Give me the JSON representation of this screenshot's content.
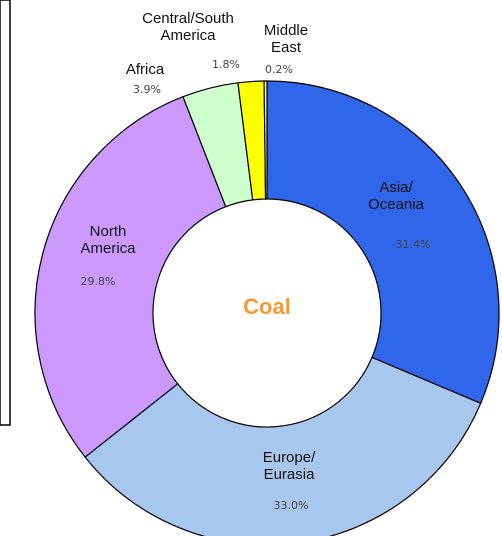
{
  "chart_data": {
    "type": "pie",
    "center_label": "Coal",
    "center_color": "#f59a2f",
    "slices": [
      {
        "label_lines": [
          "Asia/",
          "Oceania"
        ],
        "value": 31.4,
        "value_label": "31.4%",
        "color": "#2f66ea"
      },
      {
        "label_lines": [
          "Europe/",
          "Eurasia"
        ],
        "value": 33.0,
        "value_label": "33.0%",
        "color": "#a7c7ee"
      },
      {
        "label_lines": [
          "North",
          "America"
        ],
        "value": 29.8,
        "value_label": "29.8%",
        "color": "#cc99ff"
      },
      {
        "label_lines": [
          "Africa"
        ],
        "value": 3.9,
        "value_label": "3.9%",
        "color": "#ccffcc"
      },
      {
        "label_lines": [
          "Central/South",
          "America"
        ],
        "value": 1.8,
        "value_label": "1.8%",
        "color": "#ffff00"
      },
      {
        "label_lines": [
          "Middle",
          "East"
        ],
        "value": 0.2,
        "value_label": "0.2%",
        "color": "#ffff66"
      }
    ]
  }
}
